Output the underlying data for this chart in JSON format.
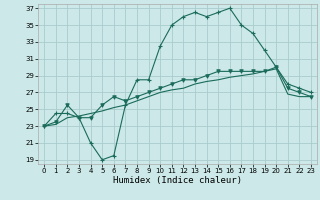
{
  "xlabel": "Humidex (Indice chaleur)",
  "bg_color": "#cce8e8",
  "grid_color": "#aacccc",
  "line_color": "#1a6b5a",
  "xlim": [
    -0.5,
    23.5
  ],
  "ylim": [
    18.5,
    37.5
  ],
  "xticks": [
    0,
    1,
    2,
    3,
    4,
    5,
    6,
    7,
    8,
    9,
    10,
    11,
    12,
    13,
    14,
    15,
    16,
    17,
    18,
    19,
    20,
    21,
    22,
    23
  ],
  "yticks": [
    19,
    21,
    23,
    25,
    27,
    29,
    31,
    33,
    35,
    37
  ],
  "curve1_x": [
    0,
    1,
    2,
    3,
    4,
    5,
    6,
    7,
    8,
    9,
    10,
    11,
    12,
    13,
    14,
    15,
    16,
    17,
    18,
    19,
    20,
    21,
    22,
    23
  ],
  "curve1_y": [
    23.0,
    24.5,
    24.5,
    24.0,
    21.0,
    19.0,
    19.5,
    25.5,
    28.5,
    28.5,
    32.5,
    35.0,
    36.0,
    36.5,
    36.0,
    36.5,
    37.0,
    35.0,
    34.0,
    32.0,
    30.0,
    28.0,
    27.5,
    27.0
  ],
  "curve2_x": [
    0,
    1,
    2,
    3,
    4,
    5,
    6,
    7,
    8,
    9,
    10,
    11,
    12,
    13,
    14,
    15,
    16,
    17,
    18,
    19,
    20,
    21,
    22,
    23
  ],
  "curve2_y": [
    23.0,
    23.5,
    25.5,
    24.0,
    24.0,
    25.5,
    26.5,
    26.0,
    26.5,
    27.0,
    27.5,
    28.0,
    28.5,
    28.5,
    29.0,
    29.5,
    29.5,
    29.5,
    29.5,
    29.5,
    30.0,
    27.5,
    27.0,
    26.5
  ],
  "curve3_x": [
    0,
    1,
    2,
    3,
    4,
    5,
    6,
    7,
    8,
    9,
    10,
    11,
    12,
    13,
    14,
    15,
    16,
    17,
    18,
    19,
    20,
    21,
    22,
    23
  ],
  "curve3_y": [
    23.0,
    23.2,
    24.0,
    24.2,
    24.5,
    24.8,
    25.2,
    25.5,
    26.0,
    26.5,
    27.0,
    27.3,
    27.5,
    28.0,
    28.3,
    28.5,
    28.8,
    29.0,
    29.2,
    29.5,
    29.8,
    26.8,
    26.5,
    26.5
  ]
}
